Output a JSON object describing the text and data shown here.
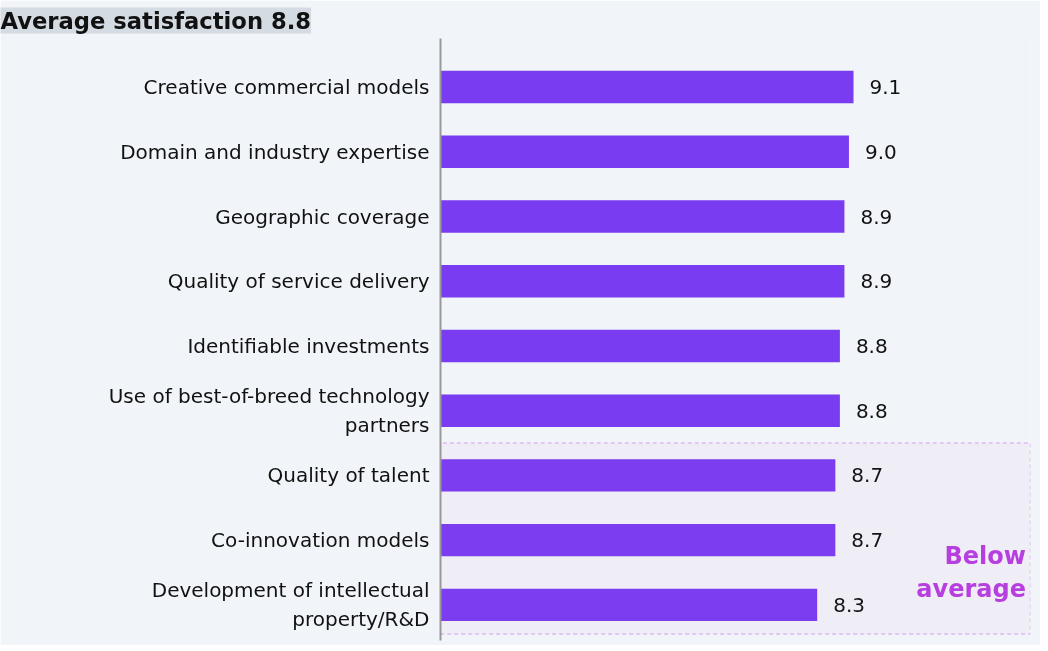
{
  "chart_data": {
    "type": "bar",
    "orientation": "horizontal",
    "title": "Average satisfaction 8.8",
    "categories": [
      "Creative commercial models",
      "Domain and industry expertise",
      "Geographic coverage",
      "Quality of service delivery",
      "Identifiable investments",
      "Use of best-of-breed technology partners",
      "Quality of talent",
      "Co-innovation models",
      "Development of intellectual property/R&D"
    ],
    "values": [
      9.1,
      9.0,
      8.9,
      8.9,
      8.8,
      8.8,
      8.7,
      8.7,
      8.3
    ],
    "color": "#7a3cf0",
    "value_labels": [
      "9.1",
      "9.0",
      "8.9",
      "8.9",
      "8.8",
      "8.8",
      "8.7",
      "8.7",
      "8.3"
    ],
    "xlim": [
      0,
      13
    ],
    "grid": false,
    "tick_labels": "y",
    "legend": false,
    "bands": [
      {
        "axis": "y",
        "from": "Quality of talent",
        "to": "Development of intellectual property/R&D",
        "label": "Below average",
        "color": "#b73fe0"
      }
    ]
  }
}
